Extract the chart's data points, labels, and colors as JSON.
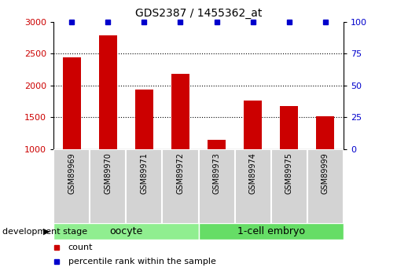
{
  "title": "GDS2387 / 1455362_at",
  "categories": [
    "GSM89969",
    "GSM89970",
    "GSM89971",
    "GSM89972",
    "GSM89973",
    "GSM89974",
    "GSM89975",
    "GSM89999"
  ],
  "bar_values": [
    2440,
    2780,
    1940,
    2180,
    1150,
    1760,
    1670,
    1510
  ],
  "percentile_values": [
    100,
    100,
    100,
    100,
    100,
    100,
    100,
    100
  ],
  "bar_color": "#cc0000",
  "percentile_color": "#0000cc",
  "ylim_left": [
    1000,
    3000
  ],
  "ylim_right": [
    0,
    100
  ],
  "yticks_left": [
    1000,
    1500,
    2000,
    2500,
    3000
  ],
  "yticks_right": [
    0,
    25,
    50,
    75,
    100
  ],
  "groups": [
    {
      "label": "oocyte",
      "indices": [
        0,
        1,
        2,
        3
      ],
      "color": "#90ee90"
    },
    {
      "label": "1-cell embryo",
      "indices": [
        4,
        5,
        6,
        7
      ],
      "color": "#66dd66"
    }
  ],
  "group_label": "development stage",
  "legend_items": [
    {
      "label": "count",
      "color": "#cc0000"
    },
    {
      "label": "percentile rank within the sample",
      "color": "#0000cc"
    }
  ],
  "background_color": "#ffffff",
  "tick_label_bg": "#d3d3d3",
  "tick_sep_color": "#ffffff",
  "bar_width": 0.5
}
